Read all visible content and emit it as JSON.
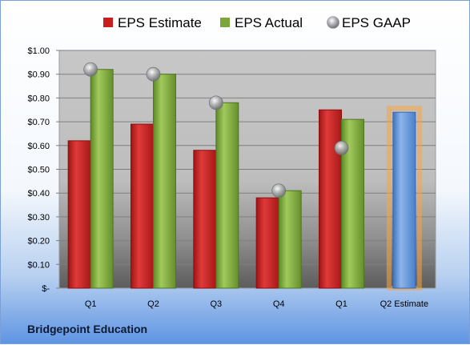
{
  "chart_data": {
    "type": "bar",
    "categories": [
      "Q1",
      "Q2",
      "Q3",
      "Q4",
      "Q1",
      "Q2 Estimate"
    ],
    "series": [
      {
        "name": "EPS Estimate",
        "values": [
          0.62,
          0.69,
          0.58,
          0.38,
          0.75,
          null
        ],
        "color": "#c81e1e"
      },
      {
        "name": "EPS Actual",
        "values": [
          0.92,
          0.9,
          0.78,
          0.41,
          0.71,
          null
        ],
        "color": "#7aa63a"
      },
      {
        "name": "EPS GAAP",
        "values": [
          0.92,
          0.9,
          0.78,
          0.41,
          0.59,
          null
        ],
        "color": "#a9abae"
      }
    ],
    "estimate_bar": {
      "category": "Q2 Estimate",
      "value": 0.74,
      "color": "#5b8fd6",
      "highlight_color": "#f7a642"
    },
    "yticks": [
      "$1.00",
      "$0.90",
      "$0.80",
      "$0.70",
      "$0.60",
      "$0.50",
      "$0.40",
      "$0.30",
      "$0.20",
      "$0.10",
      "$-"
    ],
    "ylim": [
      0,
      1.0
    ],
    "grid": true,
    "legend_position": "top"
  },
  "footer": {
    "company": "Bridgepoint Education"
  }
}
